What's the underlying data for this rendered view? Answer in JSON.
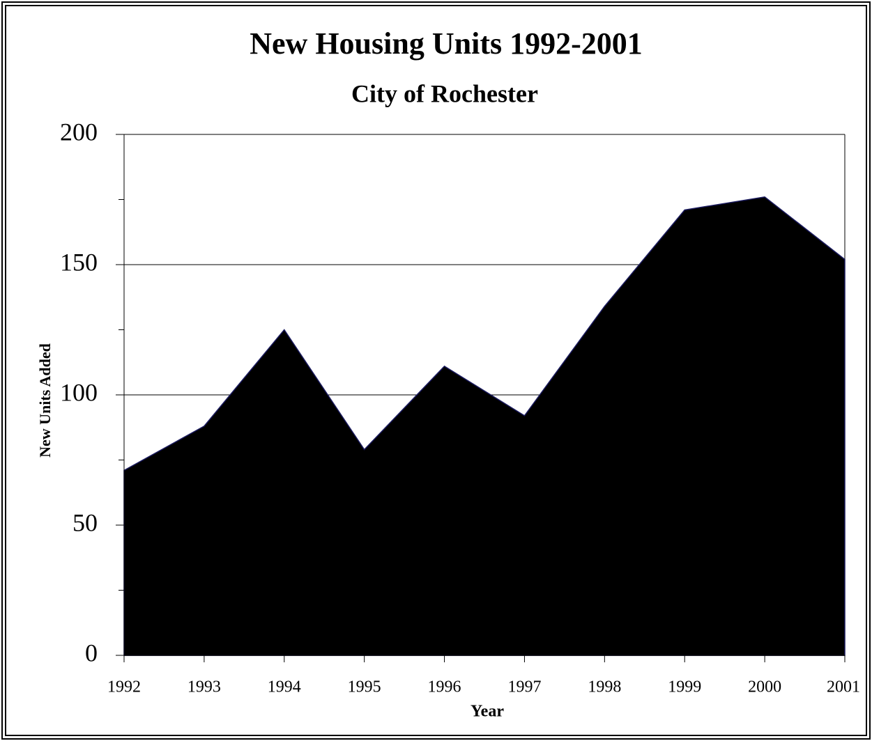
{
  "chart_data": {
    "type": "area",
    "title": "New Housing Units 1992-2001",
    "subtitle": "City of Rochester",
    "x_label": "Year",
    "y_label": "New Units Added",
    "categories": [
      "1992",
      "1993",
      "1994",
      "1995",
      "1996",
      "1997",
      "1998",
      "1999",
      "2000",
      "2001"
    ],
    "values": [
      71,
      88,
      125,
      79,
      111,
      92,
      134,
      171,
      176,
      152
    ],
    "color": "#000000",
    "ylim": [
      0,
      200
    ],
    "yticks": [
      0,
      50,
      100,
      150,
      200
    ],
    "yminorticks": [
      25,
      75,
      125,
      175
    ],
    "grid": true
  }
}
